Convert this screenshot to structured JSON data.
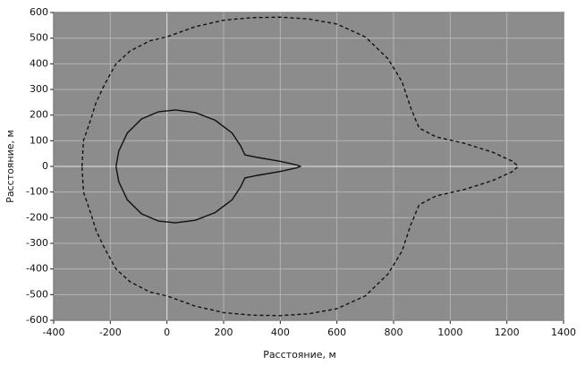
{
  "chart_data": {
    "type": "line",
    "x_label": "Расстояние, м",
    "y_label": "Расстояние, м",
    "xlim": [
      -400,
      1400
    ],
    "ylim": [
      -600,
      600
    ],
    "xticks": [
      -400,
      -200,
      0,
      200,
      400,
      600,
      800,
      1000,
      1200,
      1400
    ],
    "yticks": [
      -600,
      -500,
      -400,
      -300,
      -200,
      -100,
      0,
      100,
      200,
      300,
      400,
      500,
      600
    ],
    "grid": true,
    "series": [
      {
        "color": "#111111",
        "style": "dashed",
        "x": [
          -300,
          -295,
          -270,
          -250,
          -220,
          -180,
          -130,
          -60,
          0,
          100,
          200,
          300,
          400,
          500,
          600,
          700,
          780,
          830,
          860,
          890,
          950,
          1050,
          1150,
          1220,
          1240,
          1220,
          1150,
          1050,
          950,
          890,
          860,
          830,
          780,
          700,
          600,
          500,
          400,
          300,
          200,
          100,
          0,
          -60,
          -130,
          -180,
          -220,
          -250,
          -270,
          -295,
          -300
        ],
        "y": [
          0,
          100,
          180,
          250,
          320,
          400,
          450,
          490,
          505,
          545,
          570,
          580,
          582,
          575,
          555,
          505,
          420,
          330,
          230,
          150,
          115,
          90,
          55,
          20,
          0,
          -20,
          -55,
          -90,
          -115,
          -150,
          -230,
          -330,
          -420,
          -505,
          -555,
          -575,
          -582,
          -580,
          -570,
          -545,
          -505,
          -490,
          -450,
          -400,
          -320,
          -250,
          -180,
          -100,
          0
        ]
      },
      {
        "color": "#111111",
        "style": "solid",
        "x": [
          -180,
          -170,
          -140,
          -90,
          -30,
          30,
          100,
          170,
          230,
          260,
          275,
          320,
          400,
          460,
          470,
          460,
          400,
          320,
          275,
          260,
          230,
          170,
          100,
          30,
          -30,
          -90,
          -140,
          -170,
          -180
        ],
        "y": [
          0,
          60,
          130,
          185,
          213,
          220,
          210,
          180,
          130,
          80,
          45,
          35,
          20,
          5,
          0,
          -5,
          -20,
          -35,
          -45,
          -80,
          -130,
          -180,
          -210,
          -220,
          -213,
          -185,
          -130,
          -60,
          0
        ]
      }
    ]
  }
}
